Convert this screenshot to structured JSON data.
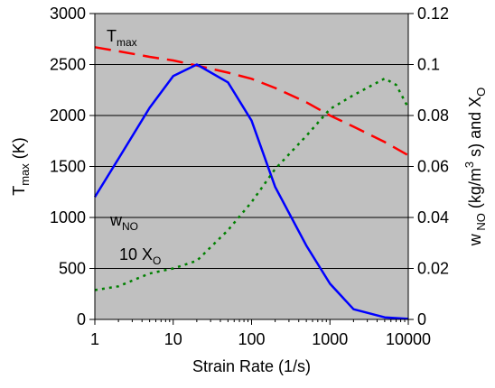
{
  "chart_data": {
    "type": "line",
    "xlabel": "Strain Rate (1/s)",
    "x_scale": "log",
    "xlim": [
      1,
      10000
    ],
    "x_ticks": [
      1,
      10,
      100,
      1000,
      10000
    ],
    "x_tick_labels": [
      "1",
      "10",
      "100",
      "1000",
      "10000"
    ],
    "y_left": {
      "label_main": "T",
      "label_sub": "max",
      "label_rest": " (K)",
      "lim": [
        0,
        3000
      ],
      "ticks": [
        0,
        500,
        1000,
        1500,
        2000,
        2500,
        3000
      ],
      "tick_labels": [
        "0",
        "500",
        "1000",
        "1500",
        "2000",
        "2500",
        "3000"
      ]
    },
    "y_right": {
      "label_parts": [
        {
          "t": "w",
          "k": "n"
        },
        {
          "t": " NO",
          "k": "sub"
        },
        {
          "t": " (kg/m",
          "k": "n"
        },
        {
          "t": "3",
          "k": "sup"
        },
        {
          "t": " s) and X",
          "k": "n"
        },
        {
          "t": "O",
          "k": "sub"
        }
      ],
      "lim": [
        0,
        0.12
      ],
      "ticks": [
        0,
        0.02,
        0.04,
        0.06,
        0.08,
        0.1,
        0.12
      ],
      "tick_labels": [
        "0",
        "0.02",
        "0.04",
        "0.06",
        "0.08",
        "0.1",
        "0.12"
      ]
    },
    "grid": "horizontal",
    "plot_background": "#c0c0c0",
    "series": [
      {
        "axis": "left",
        "color": "#ff0000",
        "style": "dashed",
        "x": [
          1,
          2,
          5,
          10,
          20,
          50,
          100,
          200,
          500,
          1000,
          2000,
          5000,
          10000
        ],
        "y": [
          2670,
          2630,
          2575,
          2540,
          2490,
          2420,
          2360,
          2270,
          2130,
          2000,
          1890,
          1740,
          1610
        ]
      },
      {
        "axis": "right",
        "color": "#0000ff",
        "style": "solid",
        "x": [
          1,
          2,
          5,
          10,
          20,
          50,
          100,
          200,
          500,
          1000,
          2000,
          5000,
          10000
        ],
        "y": [
          0.048,
          0.063,
          0.083,
          0.0955,
          0.1,
          0.093,
          0.078,
          0.052,
          0.029,
          0.014,
          0.004,
          0.0008,
          0.0002
        ]
      },
      {
        "axis": "right",
        "color": "#008000",
        "style": "dotted",
        "x": [
          1,
          2,
          5,
          10,
          20,
          50,
          100,
          200,
          500,
          1000,
          2000,
          5000,
          7000,
          10000
        ],
        "y": [
          0.0115,
          0.013,
          0.018,
          0.02,
          0.023,
          0.035,
          0.046,
          0.059,
          0.072,
          0.0825,
          0.088,
          0.0945,
          0.092,
          0.083
        ]
      }
    ],
    "annotations": [
      {
        "main": "T",
        "sub": "max",
        "series": 0
      },
      {
        "main": "w",
        "sub": "NO",
        "series": 1
      },
      {
        "main": "10 X",
        "sub": "O",
        "series": 2
      }
    ]
  }
}
